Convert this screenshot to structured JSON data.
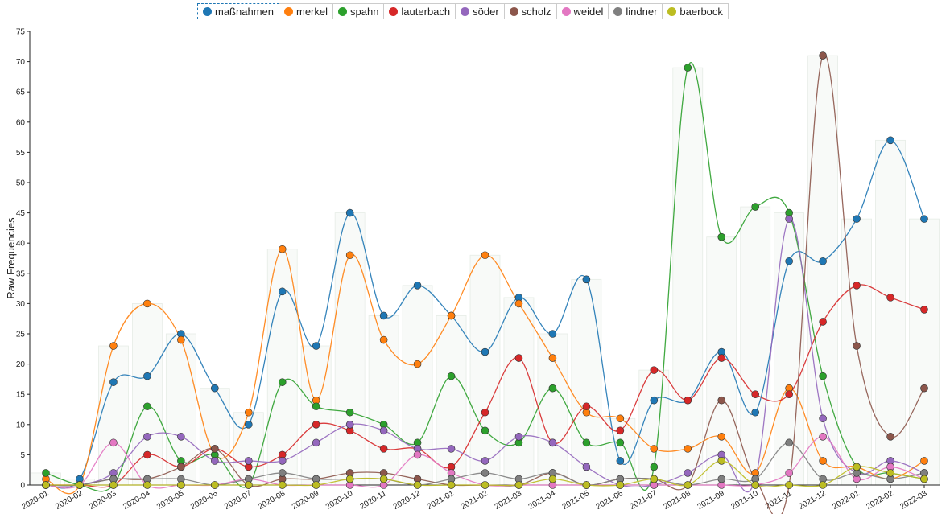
{
  "chart_data": {
    "type": "line",
    "ylabel": "Raw Frequencies",
    "ylim": [
      0,
      75
    ],
    "yticks": [
      0,
      5,
      10,
      15,
      20,
      25,
      30,
      35,
      40,
      45,
      50,
      55,
      60,
      65,
      70,
      75
    ],
    "legend_position": "top",
    "categories": [
      "2020-01",
      "2020-02",
      "2020-03",
      "2020-04",
      "2020-05",
      "2020-06",
      "2020-07",
      "2020-08",
      "2020-09",
      "2020-10",
      "2020-11",
      "2020-12",
      "2021-01",
      "2021-02",
      "2021-03",
      "2021-04",
      "2021-05",
      "2021-06",
      "2021-07",
      "2021-08",
      "2021-09",
      "2021-10",
      "2021-11",
      "2021-12",
      "2022-01",
      "2022-02",
      "2022-03"
    ],
    "series": [
      {
        "name": "maßnahmen",
        "color": "#1f77b4",
        "values": [
          0,
          1,
          17,
          18,
          25,
          16,
          10,
          32,
          23,
          45,
          28,
          33,
          28,
          22,
          31,
          25,
          34,
          4,
          14,
          14,
          22,
          12,
          37,
          37,
          44,
          57,
          44
        ]
      },
      {
        "name": "merkel",
        "color": "#ff7f0e",
        "values": [
          1,
          0,
          23,
          30,
          24,
          5,
          12,
          39,
          14,
          38,
          24,
          20,
          28,
          38,
          30,
          21,
          12,
          11,
          6,
          6,
          8,
          2,
          16,
          4,
          3,
          1,
          4
        ]
      },
      {
        "name": "spahn",
        "color": "#2ca02c",
        "values": [
          2,
          0,
          0,
          13,
          4,
          5,
          0,
          17,
          13,
          12,
          10,
          7,
          18,
          9,
          7,
          16,
          7,
          7,
          3,
          69,
          41,
          46,
          45,
          18,
          3,
          2,
          1
        ]
      },
      {
        "name": "lauterbach",
        "color": "#d62728",
        "values": [
          0,
          0,
          0,
          5,
          3,
          6,
          3,
          5,
          10,
          9,
          6,
          6,
          3,
          12,
          21,
          7,
          13,
          9,
          19,
          14,
          21,
          15,
          15,
          27,
          33,
          31,
          29
        ]
      },
      {
        "name": "söder",
        "color": "#9467bd",
        "values": [
          0,
          0,
          2,
          8,
          8,
          4,
          4,
          4,
          7,
          10,
          9,
          6,
          6,
          4,
          8,
          7,
          3,
          0,
          0,
          2,
          5,
          1,
          44,
          11,
          2,
          4,
          2
        ]
      },
      {
        "name": "scholz",
        "color": "#8c564b",
        "values": [
          0,
          0,
          1,
          1,
          3,
          6,
          0,
          1,
          1,
          2,
          2,
          1,
          0,
          0,
          0,
          2,
          0,
          1,
          1,
          0,
          14,
          1,
          0,
          71,
          23,
          8,
          16
        ]
      },
      {
        "name": "weidel",
        "color": "#e377c2",
        "values": [
          0,
          0,
          7,
          0,
          0,
          0,
          1,
          0,
          0,
          0,
          0,
          5,
          2,
          0,
          0,
          0,
          0,
          0,
          0,
          0,
          0,
          0,
          2,
          8,
          1,
          3,
          1
        ]
      },
      {
        "name": "lindner",
        "color": "#7f7f7f",
        "values": [
          0,
          0,
          1,
          1,
          1,
          0,
          1,
          2,
          1,
          1,
          1,
          0,
          1,
          2,
          1,
          2,
          0,
          1,
          1,
          0,
          1,
          1,
          7,
          1,
          2,
          1,
          2
        ]
      },
      {
        "name": "baerbock",
        "color": "#bcbd22",
        "values": [
          0,
          0,
          0,
          0,
          0,
          0,
          0,
          0,
          0,
          1,
          1,
          0,
          0,
          0,
          0,
          1,
          0,
          0,
          1,
          0,
          4,
          0,
          0,
          0,
          3,
          2,
          1
        ]
      }
    ]
  }
}
